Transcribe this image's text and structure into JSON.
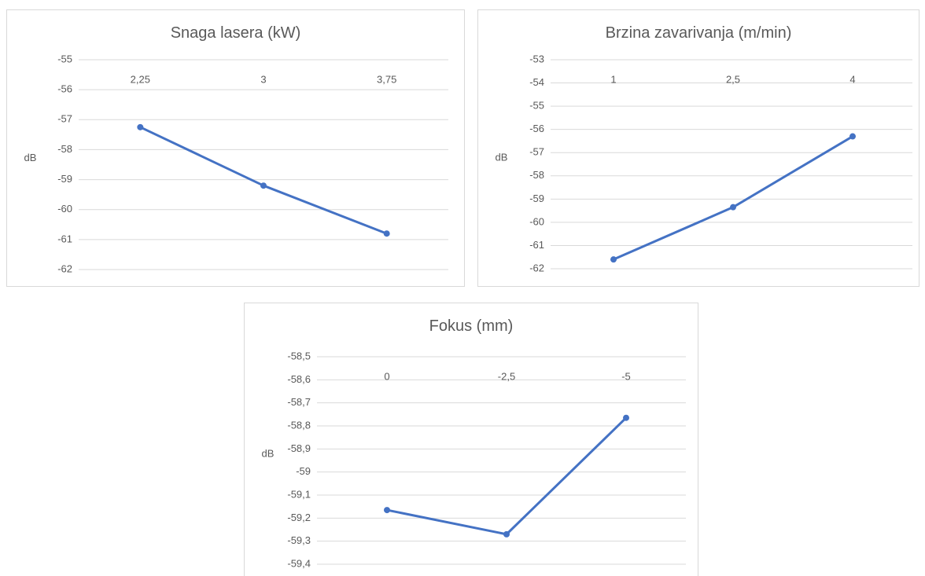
{
  "chart_data": [
    {
      "type": "line",
      "title": "Snaga lasera (kW)",
      "ylabel": "dB",
      "categories": [
        "2,25",
        "3",
        "3,75"
      ],
      "series": [
        {
          "color": "#4472c4",
          "values": [
            -57.25,
            -59.2,
            -60.8
          ]
        }
      ],
      "ylim": [
        -62,
        -55
      ],
      "yticks": [
        -55,
        -56,
        -57,
        -58,
        -59,
        -60,
        -61,
        -62
      ],
      "grid": true
    },
    {
      "type": "line",
      "title": "Brzina zavarivanja (m/min)",
      "ylabel": "dB",
      "categories": [
        "1",
        "2,5",
        "4"
      ],
      "series": [
        {
          "color": "#4472c4",
          "values": [
            -61.6,
            -59.35,
            -56.3
          ]
        }
      ],
      "ylim": [
        -62,
        -53
      ],
      "yticks": [
        -53,
        -54,
        -55,
        -56,
        -57,
        -58,
        -59,
        -60,
        -61,
        -62
      ],
      "grid": true
    },
    {
      "type": "line",
      "title": "Fokus (mm)",
      "ylabel": "dB",
      "categories": [
        "0",
        "-2,5",
        "-5"
      ],
      "series": [
        {
          "color": "#4472c4",
          "values": [
            -59.165,
            -59.27,
            -58.765
          ]
        }
      ],
      "ylim": [
        -59.4,
        -58.5
      ],
      "yticks": [
        {
          "value": -58.5,
          "label": "-58,5"
        },
        {
          "value": -58.6,
          "label": "-58,6"
        },
        {
          "value": -58.7,
          "label": "-58,7"
        },
        {
          "value": -58.8,
          "label": "-58,8"
        },
        {
          "value": -58.9,
          "label": "-58,9"
        },
        -59,
        {
          "value": -59.1,
          "label": "-59,1"
        },
        {
          "value": -59.2,
          "label": "-59,2"
        },
        {
          "value": -59.3,
          "label": "-59,3"
        },
        {
          "value": -59.4,
          "label": "-59,4"
        }
      ],
      "grid": true
    }
  ]
}
